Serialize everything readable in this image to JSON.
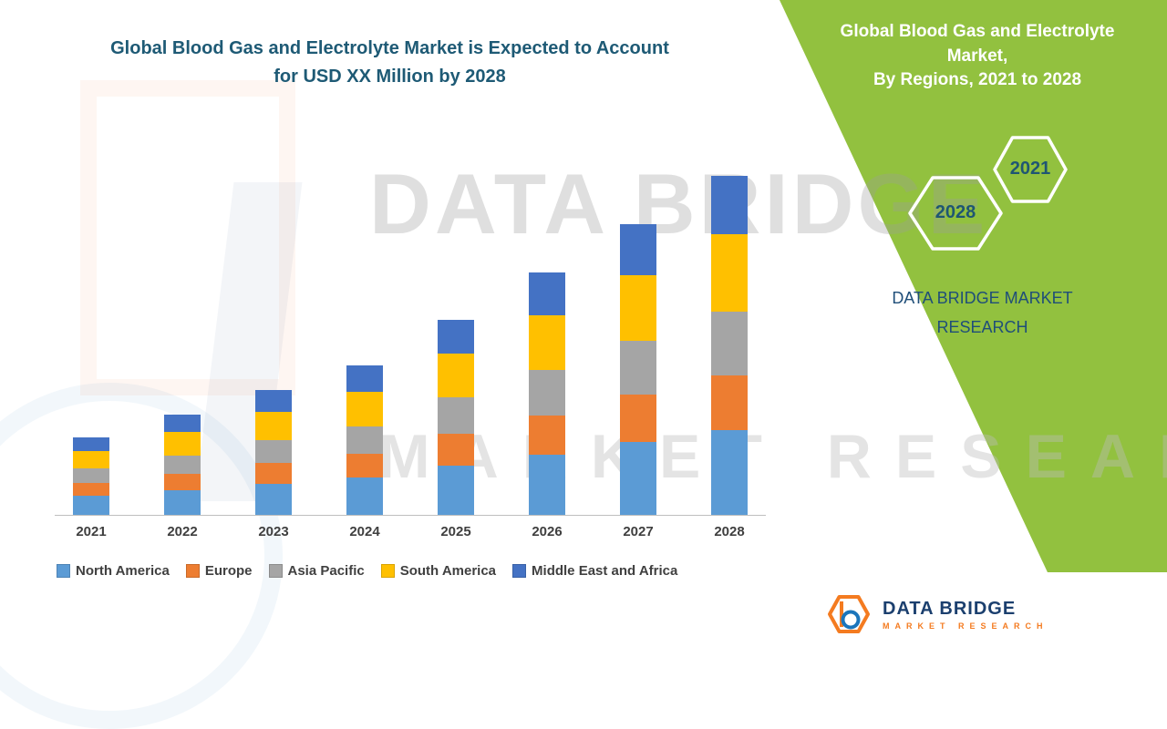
{
  "title": {
    "line1": "Global Blood Gas and Electrolyte Market is Expected to Account",
    "line2": "for USD XX Million by 2028"
  },
  "panel": {
    "green_color": "#92C13F",
    "title_line1": "Global Blood Gas and Electrolyte Market,",
    "title_line2": "By Regions, 2021 to 2028",
    "hex_year_top": "2021",
    "hex_year_bottom": "2028",
    "year_text_color": "#1F5673",
    "brand_line1": "DATA BRIDGE MARKET",
    "brand_line2": "RESEARCH"
  },
  "watermark": {
    "line1": "DATA BRIDGE",
    "line2": "MARKET RESEARCH"
  },
  "footer_logo": {
    "brand": "DATA BRIDGE",
    "subtitle": "MARKET RESEARCH"
  },
  "chart_data": {
    "type": "bar",
    "stacked": true,
    "title": "Global Blood Gas and Electrolyte Market is Expected to Account for USD XX Million by 2028",
    "xlabel": "",
    "ylabel": "",
    "grid": false,
    "legend_position": "bottom",
    "ylim": [
      0,
      400
    ],
    "categories": [
      "2021",
      "2022",
      "2023",
      "2024",
      "2025",
      "2026",
      "2027",
      "2028"
    ],
    "series": [
      {
        "name": "North America",
        "color": "#5B9BD5",
        "values": [
          22,
          28,
          35,
          42,
          55,
          68,
          82,
          95
        ]
      },
      {
        "name": "Europe",
        "color": "#ED7D31",
        "values": [
          14,
          18,
          23,
          27,
          36,
          44,
          53,
          62
        ]
      },
      {
        "name": "Asia Pacific",
        "color": "#A5A5A5",
        "values": [
          16,
          21,
          26,
          31,
          41,
          51,
          61,
          72
        ]
      },
      {
        "name": "South America",
        "color": "#FFC000",
        "values": [
          20,
          26,
          32,
          38,
          50,
          62,
          74,
          87
        ]
      },
      {
        "name": "Middle East and Africa",
        "color": "#4472C4",
        "values": [
          15,
          20,
          25,
          30,
          38,
          48,
          57,
          66
        ]
      }
    ]
  }
}
